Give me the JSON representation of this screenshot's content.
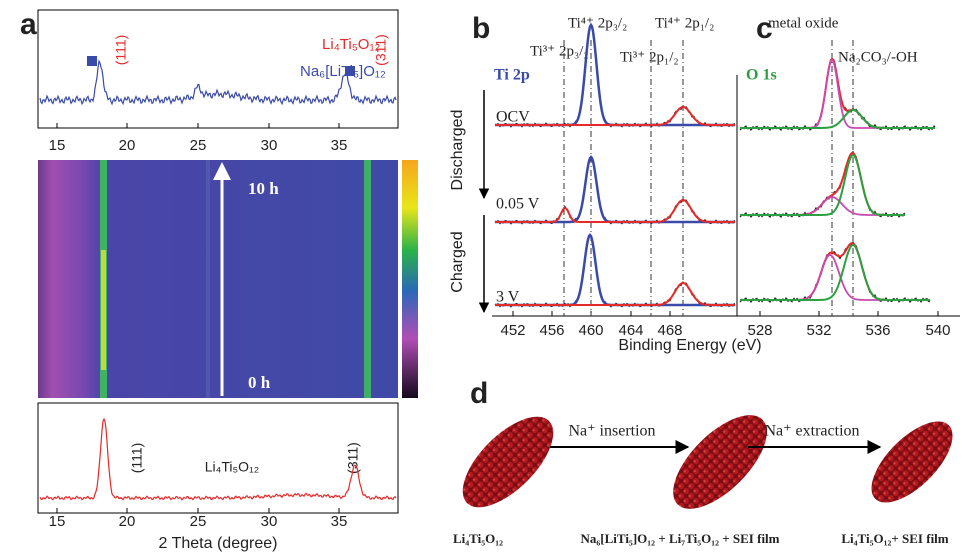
{
  "panels": {
    "a": {
      "label": "a",
      "top": {
        "legend": [
          "Li₄Ti₅O₁₂",
          "Na₆[LiTi₅]O₁₂"
        ],
        "peaks": [
          "(111)",
          "(311)"
        ],
        "xticks": [
          "15",
          "20",
          "25",
          "30",
          "35"
        ]
      },
      "heatmap": {
        "end": "10 h",
        "start": "0 h"
      },
      "bottom": {
        "compound": "Li₄Ti₅O₁₂",
        "peaks": [
          "(111)",
          "(311)"
        ],
        "xticks": [
          "15",
          "20",
          "25",
          "30",
          "35"
        ],
        "xlabel": "2 Theta (degree)"
      }
    },
    "b": {
      "label": "b",
      "element": "Ti 2p",
      "peak_labels": [
        "Ti⁴⁺ 2p₃/₂",
        "Ti⁴⁺ 2p₁/₂",
        "Ti³⁺ 2p₃/₂",
        "Ti³⁺ 2p₁/₂"
      ],
      "states": [
        "OCV",
        "0.05 V",
        "3 V"
      ],
      "arrows": [
        "Discharged",
        "Charged"
      ],
      "xticks": [
        "452",
        "456",
        "460",
        "464",
        "468"
      ]
    },
    "c": {
      "label": "c",
      "element": "O 1s",
      "peak_labels": [
        "metal oxide",
        "Na₂CO₃/-OH"
      ],
      "xticks": [
        "528",
        "532",
        "536",
        "540"
      ]
    },
    "xlabel": "Binding Energy (eV)",
    "d": {
      "label": "d",
      "steps": [
        "Na⁺ insertion",
        "Na⁺ extraction"
      ],
      "captions": [
        "Li₄Ti₅O₁₂",
        "Na₆[LiTi₅]O₁₂ + Li₇Ti₅O₁₂ + SEI film",
        "Li₄Ti₅O₁₂+ SEI film"
      ]
    }
  }
}
